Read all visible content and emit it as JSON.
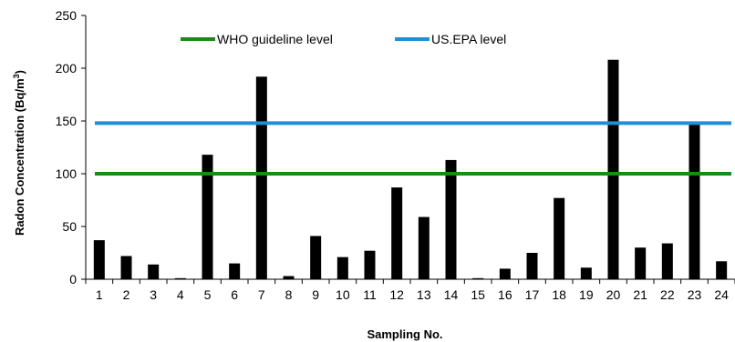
{
  "chart_data": {
    "type": "bar",
    "categories": [
      "1",
      "2",
      "3",
      "4",
      "5",
      "6",
      "7",
      "8",
      "9",
      "10",
      "11",
      "12",
      "13",
      "14",
      "15",
      "16",
      "17",
      "18",
      "19",
      "20",
      "21",
      "22",
      "23",
      "24"
    ],
    "values": [
      37,
      22,
      14,
      1,
      118,
      15,
      192,
      3,
      41,
      21,
      27,
      87,
      59,
      113,
      1,
      10,
      25,
      77,
      11,
      208,
      30,
      34,
      148,
      17
    ],
    "bar_color": "#000000",
    "xlabel": "Sampling No.",
    "ylabel_main": "Radon Concentration",
    "ylabel_unit_prefix": "(Bq/m",
    "ylabel_unit_sup": "3",
    "ylabel_unit_suffix": ")",
    "ylim": [
      0,
      250
    ],
    "yticks": [
      0,
      50,
      100,
      150,
      200,
      250
    ],
    "grid": false,
    "legend_position": "top",
    "reference_lines": [
      {
        "name": "WHO guideline level",
        "value": 100,
        "color": "#1a8a1a"
      },
      {
        "name": "US.EPA level",
        "value": 148,
        "color": "#1f8fd6"
      }
    ]
  }
}
